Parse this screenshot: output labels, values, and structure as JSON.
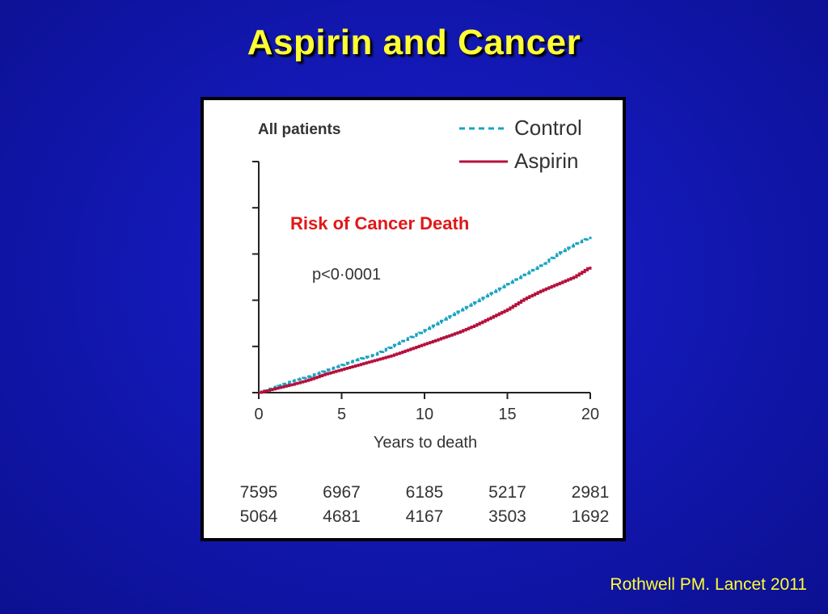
{
  "slide": {
    "title": "Aspirin and Cancer",
    "citation": "Rothwell PM. Lancet 2011",
    "title_color": "#ffff33",
    "background_color": "#1318b4"
  },
  "chart_data": {
    "type": "line",
    "panel_title": "All patients",
    "annotation": "Risk of Cancer Death",
    "p_value": "p<0·0001",
    "xlabel": "Years to death",
    "ylabel": "",
    "xlim": [
      0,
      20
    ],
    "ylim": [
      0,
      1
    ],
    "x_ticks": [
      "0",
      "5",
      "10",
      "15",
      "20"
    ],
    "y_tick_count": 6,
    "y_tick_labels_shown": false,
    "legend_position": "top-right",
    "series": [
      {
        "name": "Control",
        "color": "#1aa3c2",
        "dash": "dashed",
        "x": [
          0,
          1,
          2,
          3,
          4,
          5,
          6,
          7,
          8,
          9,
          10,
          11,
          12,
          13,
          14,
          15,
          16,
          17,
          18,
          19,
          20
        ],
        "y": [
          0,
          0.025,
          0.05,
          0.07,
          0.095,
          0.12,
          0.145,
          0.165,
          0.2,
          0.235,
          0.27,
          0.31,
          0.35,
          0.39,
          0.43,
          0.47,
          0.51,
          0.55,
          0.6,
          0.64,
          0.675
        ]
      },
      {
        "name": "Aspirin",
        "color": "#b5103c",
        "dash": "solid",
        "x": [
          0,
          1,
          2,
          3,
          4,
          5,
          6,
          7,
          8,
          9,
          10,
          11,
          12,
          13,
          14,
          15,
          16,
          17,
          18,
          19,
          20
        ],
        "y": [
          0,
          0.018,
          0.035,
          0.055,
          0.08,
          0.1,
          0.12,
          0.14,
          0.16,
          0.185,
          0.21,
          0.235,
          0.26,
          0.29,
          0.325,
          0.36,
          0.405,
          0.44,
          0.47,
          0.5,
          0.545
        ]
      }
    ],
    "numbers_at_risk": {
      "x": [
        0,
        5,
        10,
        15,
        20
      ],
      "rows": [
        [
          "7595",
          "6967",
          "6185",
          "5217",
          "2981"
        ],
        [
          "5064",
          "4681",
          "4167",
          "3503",
          "1692"
        ]
      ]
    }
  }
}
